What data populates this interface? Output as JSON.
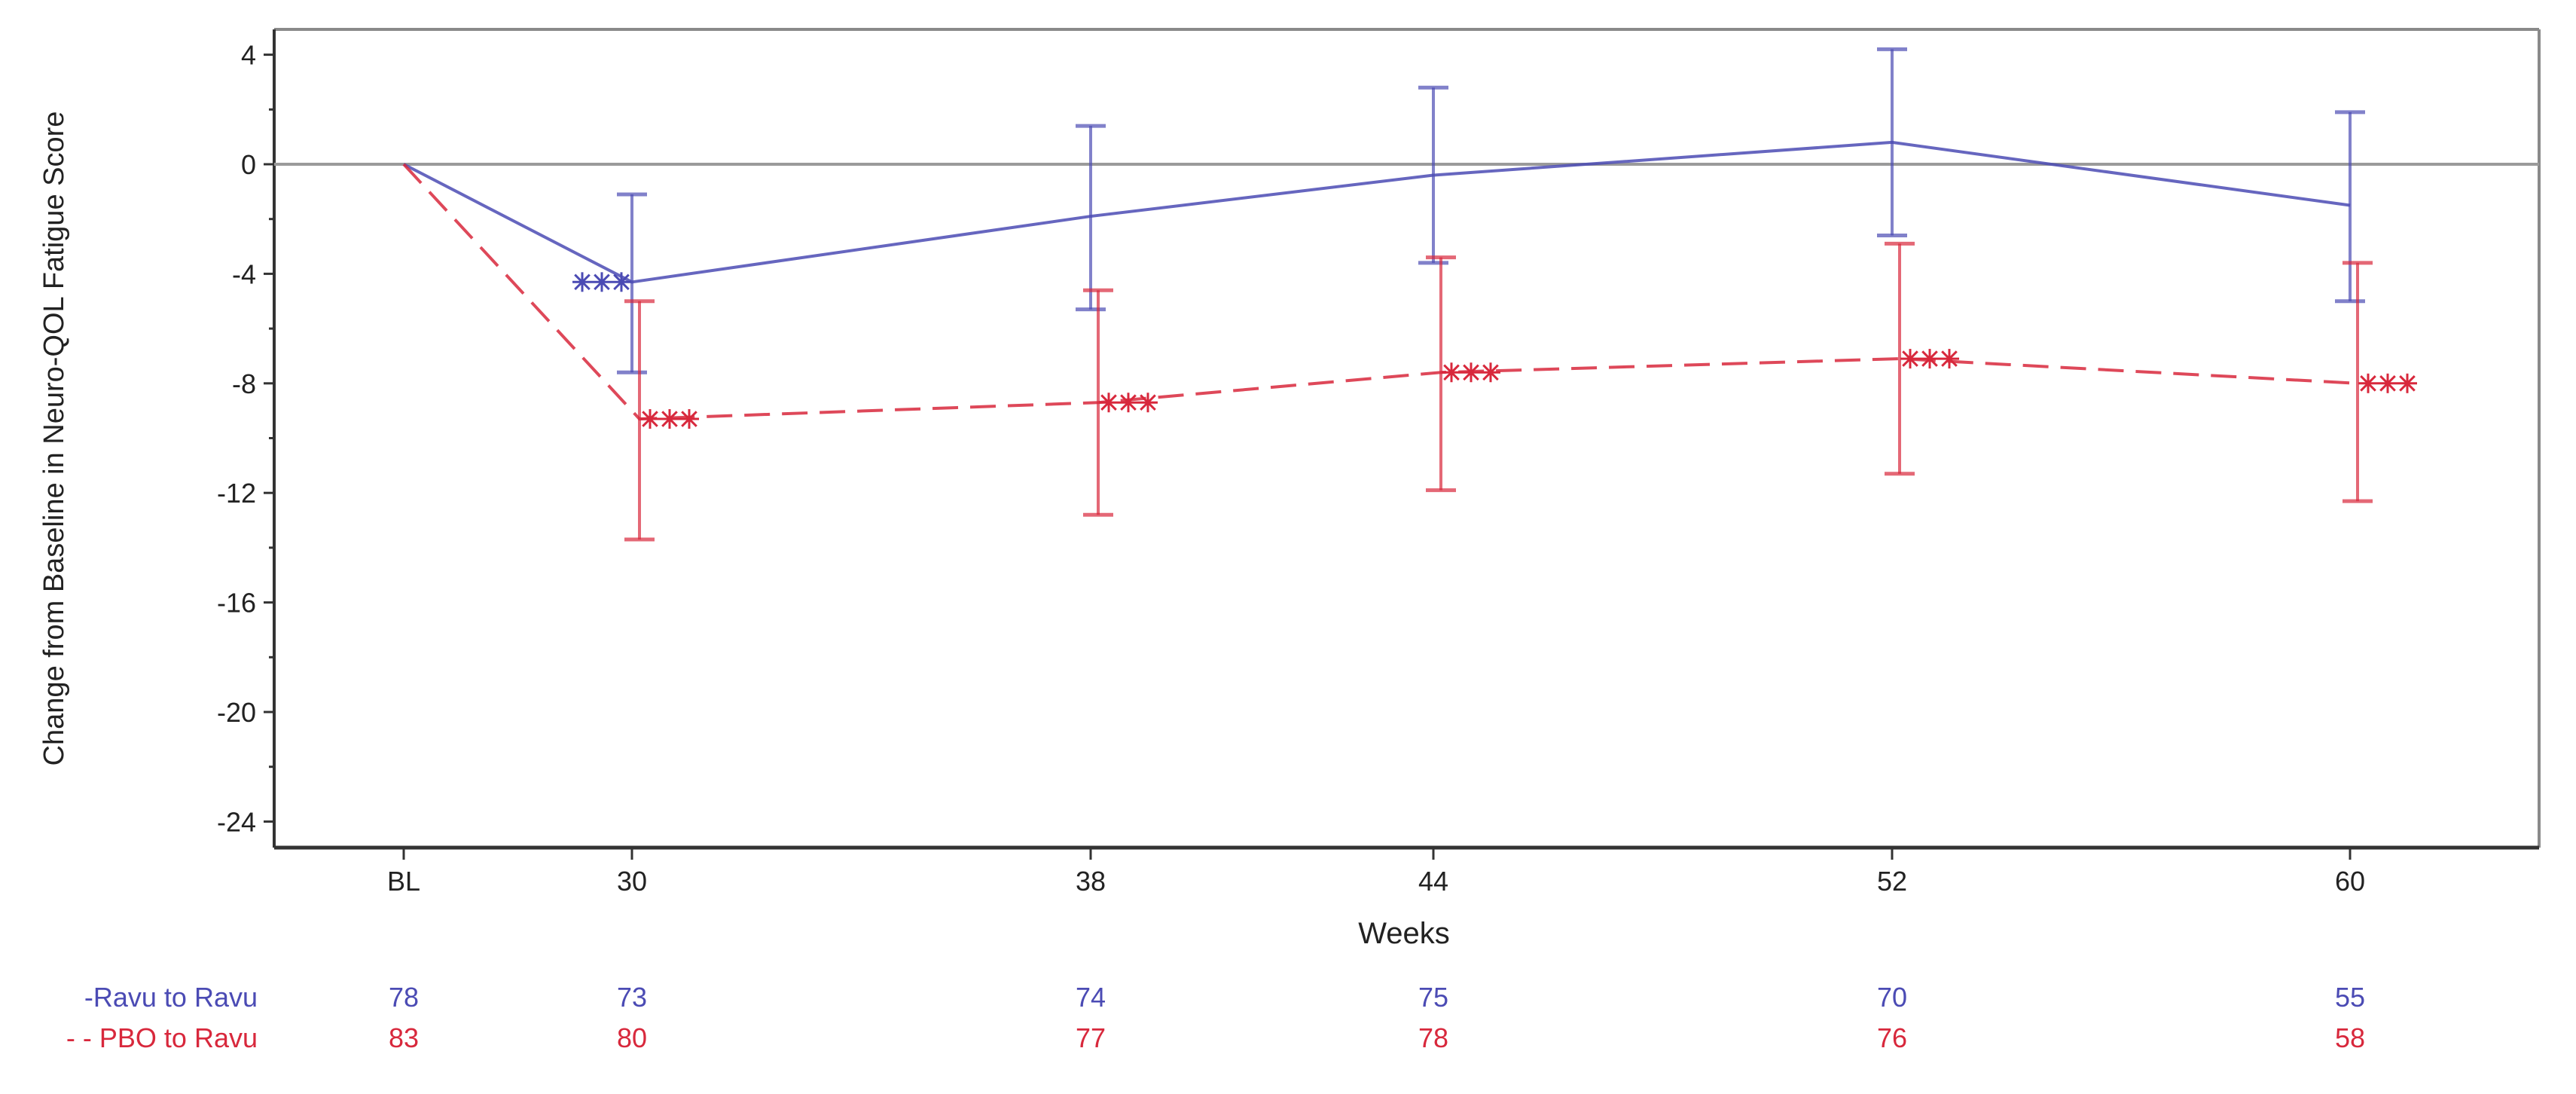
{
  "chart_data": {
    "type": "line",
    "title": "",
    "xlabel": "Weeks",
    "ylabel": "Change from Baseline in Neuro-QOL Fatigue Score",
    "categories": [
      "BL",
      "30",
      "38",
      "44",
      "52",
      "60"
    ],
    "ylim": [
      -26,
      5
    ],
    "yticks": [
      4,
      0,
      -4,
      -8,
      -12,
      -16,
      -20,
      -24
    ],
    "reference_line": 0,
    "grid": false,
    "legend_position": "bottom-left (at-risk table)",
    "series": [
      {
        "name": "Ravu to Ravu",
        "legend_label": "-Ravu to Ravu",
        "color": "#4b4bb4",
        "line_style": "solid",
        "values": [
          0,
          -4.3,
          -1.9,
          -0.4,
          0.8,
          -1.5
        ],
        "ci_upper": [
          null,
          -1.1,
          1.4,
          2.8,
          4.2,
          1.9
        ],
        "ci_lower": [
          null,
          -7.6,
          -5.3,
          -3.6,
          -2.6,
          -5.0
        ],
        "n": [
          78,
          73,
          74,
          75,
          70,
          55
        ],
        "marker_weeks": [
          "30"
        ]
      },
      {
        "name": "PBO to Ravu",
        "legend_label": "- - PBO to Ravu",
        "color": "#d8283c",
        "line_style": "dashed",
        "values": [
          0,
          -9.3,
          -8.7,
          -7.6,
          -7.1,
          -8.0
        ],
        "ci_upper": [
          null,
          -5.0,
          -4.6,
          -3.4,
          -2.9,
          -3.6
        ],
        "ci_lower": [
          null,
          -13.7,
          -12.8,
          -11.9,
          -11.3,
          -12.3
        ],
        "n": [
          83,
          80,
          77,
          78,
          76,
          58
        ],
        "marker_weeks": [
          "30",
          "38",
          "44",
          "52",
          "60"
        ]
      }
    ]
  },
  "axis": {
    "x_label": "Weeks",
    "y_label": "Change from Baseline in Neuro-QOL Fatigue Score",
    "x_ticks": [
      "BL",
      "30",
      "38",
      "44",
      "52",
      "60"
    ],
    "y_ticks": [
      "4",
      "0",
      "-4",
      "-8",
      "-12",
      "-16",
      "-20",
      "-24"
    ]
  },
  "at_risk": {
    "rows": [
      {
        "label": "-Ravu to Ravu",
        "color": "#4b4bb4",
        "counts": [
          "78",
          "73",
          "74",
          "75",
          "70",
          "55"
        ]
      },
      {
        "label": "- - PBO to Ravu",
        "color": "#d8283c",
        "counts": [
          "83",
          "80",
          "77",
          "78",
          "76",
          "58"
        ]
      }
    ]
  }
}
